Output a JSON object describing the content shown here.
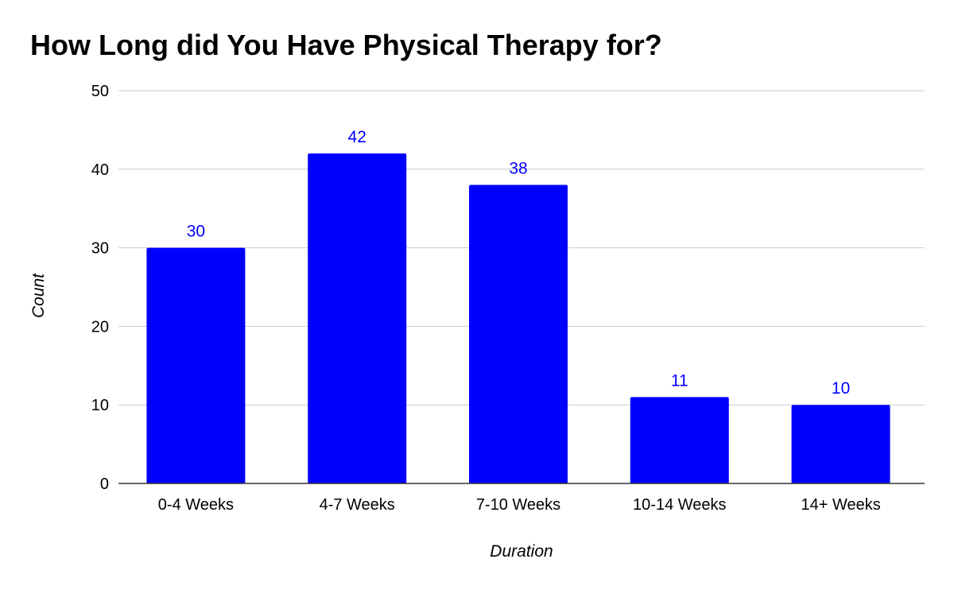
{
  "chart_data": {
    "type": "bar",
    "title": "How Long did You Have Physical Therapy for?",
    "xlabel": "Duration",
    "ylabel": "Count",
    "categories": [
      "0-4 Weeks",
      "4-7 Weeks",
      "7-10 Weeks",
      "10-14 Weeks",
      "14+ Weeks"
    ],
    "values": [
      30,
      42,
      38,
      11,
      10
    ],
    "data_labels": [
      "30",
      "42",
      "38",
      "11",
      "10"
    ],
    "ylim": [
      0,
      50
    ],
    "yticks": [
      0,
      10,
      20,
      30,
      40,
      50
    ],
    "ytick_labels": [
      "0",
      "10",
      "20",
      "30",
      "40",
      "50"
    ],
    "grid": true,
    "legend": "none",
    "colors": {
      "bar": "#0000ff",
      "data_label": "#0000ff",
      "grid": "#cccccc",
      "axis": "#333333",
      "text": "#000000"
    }
  }
}
